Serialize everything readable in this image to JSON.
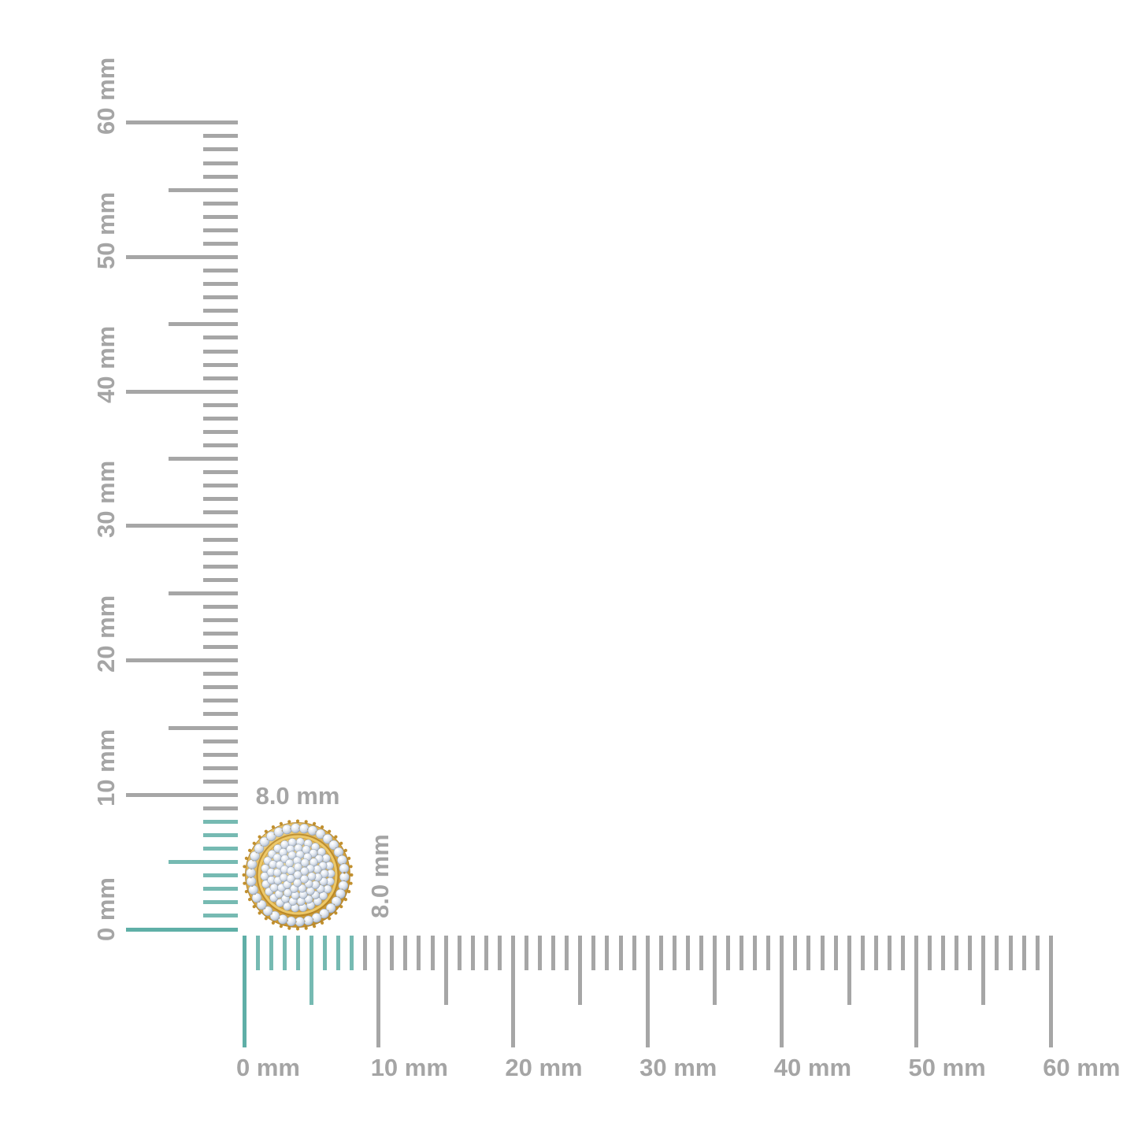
{
  "dimensions": {
    "width_label": "8.0 mm",
    "height_label": "8.0 mm"
  },
  "rulers": {
    "unit": "mm",
    "min_mm": 0,
    "max_mm": 60,
    "minor_step_mm": 1,
    "medium_step_mm": 5,
    "major_step_mm": 10,
    "highlight_range_mm": [
      0,
      8
    ],
    "tick_color": "#a6a6a6",
    "highlight_color": "#76bab2",
    "highlight_color_strong": "#5fafa7",
    "label_color": "#a5a5a5",
    "vertical": {
      "labels": [
        "0 mm",
        "10 mm",
        "20 mm",
        "30 mm",
        "40 mm",
        "50 mm",
        "60 mm"
      ]
    },
    "horizontal": {
      "labels": [
        "0 mm",
        "10 mm",
        "20 mm",
        "30 mm",
        "40 mm",
        "50 mm",
        "60 mm"
      ]
    }
  },
  "item": {
    "name": "round-pave-diamond-cluster-stud-earring-yellow-gold",
    "gold_light": "#f6e09c",
    "gold_base": "#e3b95a",
    "gold_mid": "#c9952e",
    "gold_dark": "#b07f22",
    "gold_band": "#ecc869",
    "prong_color": "#c1902f",
    "diamond_white": "#ffffff",
    "diamond_light": "#e8edf4",
    "diamond_mid": "#c3cddb",
    "diamond_edge": "#9aa6ba",
    "stone_stroke": "#8fa0b5",
    "halo_stone_count": 34,
    "halo_radius": 59.5,
    "halo_stone_radius": 6,
    "fringe_dot_count": 40,
    "dome_rings": [
      {
        "radius": 42,
        "count": 26
      },
      {
        "radius": 34,
        "count": 21
      },
      {
        "radius": 26,
        "count": 16
      },
      {
        "radius": 18,
        "count": 11
      },
      {
        "radius": 10,
        "count": 6
      },
      {
        "radius": 0,
        "count": 1
      }
    ],
    "dome_stone_radius": 5.2
  }
}
